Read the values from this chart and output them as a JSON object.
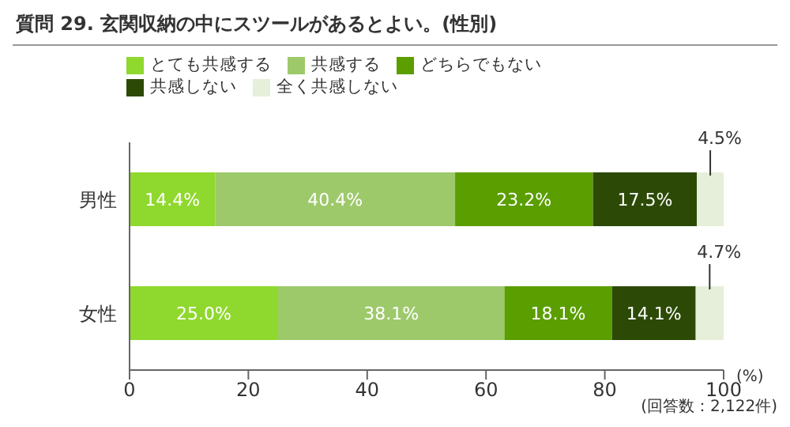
{
  "chart_data": {
    "type": "bar",
    "orientation": "horizontal",
    "stacked": true,
    "title": "質問 29. 玄関収納の中にスツールがあるとよい。(性別)",
    "categories": [
      "男性",
      "女性"
    ],
    "series": [
      {
        "name": "とても共感する",
        "color": "#8fd82d",
        "values": [
          14.4,
          25.0
        ],
        "value_labels": [
          "14.4%",
          "25.0%"
        ]
      },
      {
        "name": "共感する",
        "color": "#9dc96b",
        "values": [
          40.4,
          38.1
        ],
        "value_labels": [
          "40.4%",
          "38.1%"
        ]
      },
      {
        "name": "どちらでもない",
        "color": "#5a9e00",
        "values": [
          23.2,
          18.1
        ],
        "value_labels": [
          "23.2%",
          "18.1%"
        ]
      },
      {
        "name": "共感しない",
        "color": "#2c4a06",
        "values": [
          17.5,
          14.1
        ],
        "value_labels": [
          "17.5%",
          "14.1%"
        ]
      },
      {
        "name": "全く共感しない",
        "color": "#e6efd9",
        "values": [
          4.5,
          4.7
        ],
        "value_labels": [
          "4.5%",
          "4.7%"
        ]
      }
    ],
    "xlim": [
      0,
      100
    ],
    "xticks": [
      0,
      20,
      40,
      60,
      80,
      100
    ],
    "grid": false,
    "legend": "top left",
    "annotations": [
      "(%)",
      "(回答数：2,122件)"
    ]
  }
}
